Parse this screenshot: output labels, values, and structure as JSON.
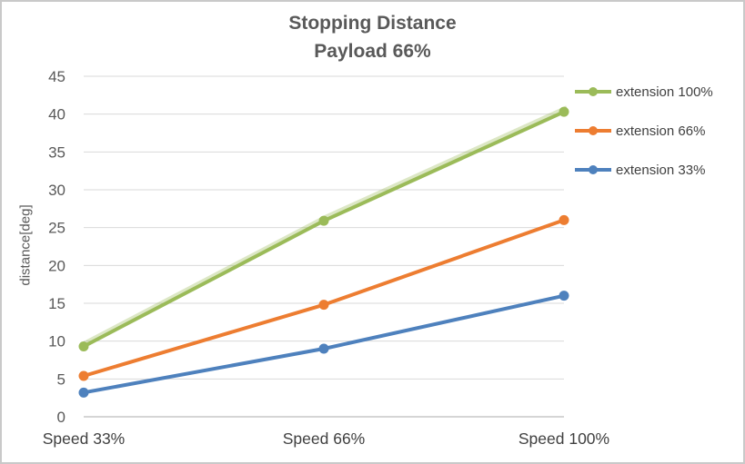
{
  "chart_data": {
    "type": "line",
    "title": "Stopping Distance",
    "subtitle": "Payload 66%",
    "categories": [
      "Speed 33%",
      "Speed 66%",
      "Speed 100%"
    ],
    "series": [
      {
        "name": "extension 100%",
        "color": "#9bbb59",
        "values": [
          9.3,
          25.9,
          40.3
        ]
      },
      {
        "name": "extension 66%",
        "color": "#ed7d31",
        "values": [
          5.4,
          14.8,
          26.0
        ]
      },
      {
        "name": "extension 33%",
        "color": "#4e81bd",
        "values": [
          3.2,
          9.0,
          16.0
        ]
      }
    ],
    "xlabel": "",
    "ylabel": "distance[deg]",
    "ylim": [
      0,
      45
    ],
    "ytick_step": 5,
    "grid": true,
    "legend_position": "right",
    "colors": {
      "gridline": "#d9d9d9",
      "axis_line": "#ababab",
      "tick_label": "#595959",
      "category_label": "#404040",
      "title": "#595959"
    }
  }
}
